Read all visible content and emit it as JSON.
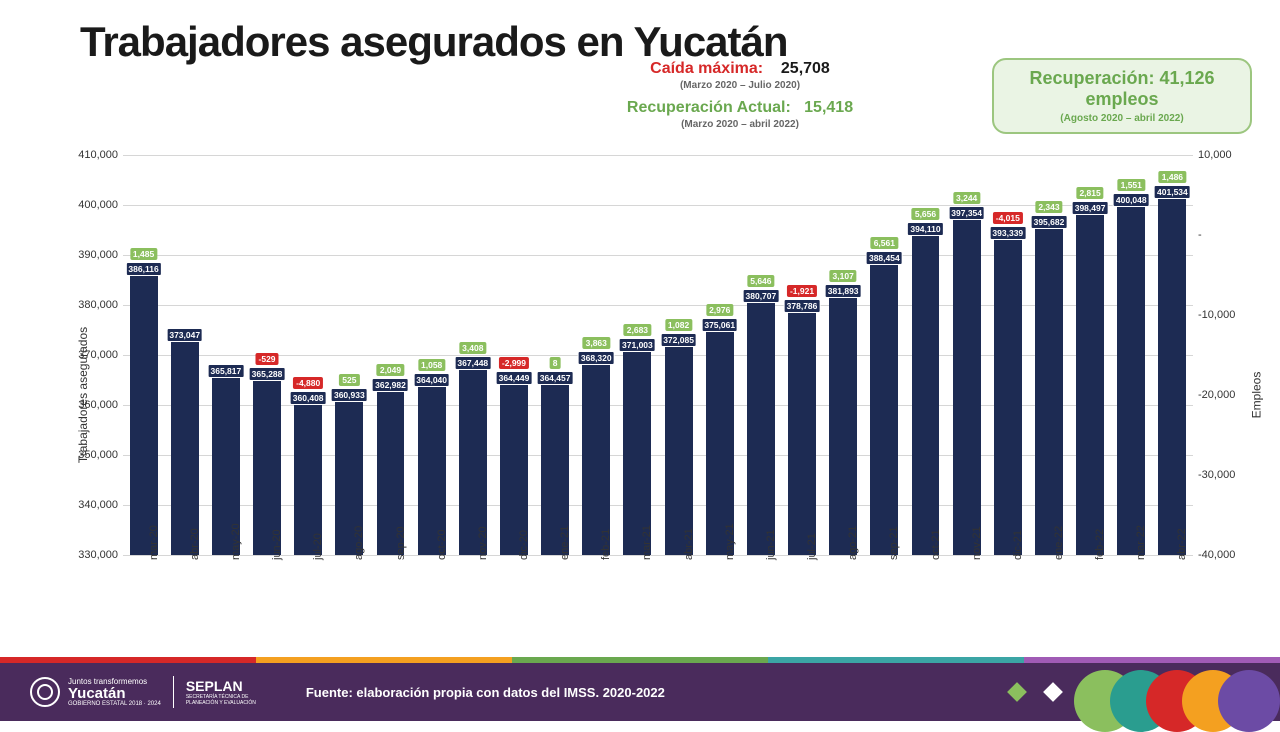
{
  "title": "Trabajadores asegurados en Yucatán",
  "subheader": {
    "caida_label": "Caída máxima:",
    "caida_value": "25,708",
    "caida_period": "(Marzo 2020 – Julio 2020)",
    "recup_label": "Recuperación Actual:",
    "recup_value": "15,418",
    "recup_period": "(Marzo 2020 – abril 2022)"
  },
  "recovery_box": {
    "line1": "Recuperación: 41,126 empleos",
    "line2": "(Agosto 2020 – abril 2022)"
  },
  "chart": {
    "type": "bar",
    "bar_color": "#1d2b53",
    "delta_pos_color": "#8bbf5e",
    "delta_neg_color": "#d62828",
    "grid_color": "#d6d6d6",
    "background_color": "#ffffff",
    "y_left": {
      "label": "Trabajadores asegurados",
      "min": 330000,
      "max": 410000,
      "step": 10000
    },
    "y_right": {
      "label": "Empleos",
      "min": -40000,
      "max": 10000,
      "step": 10000
    },
    "categories": [
      "mar-20",
      "abr-20",
      "may-20",
      "jun-20",
      "jul-20",
      "ago-20",
      "sep-20",
      "oct-20",
      "nov-20",
      "dic-20",
      "ene-21",
      "feb-21",
      "mar-21",
      "abr-21",
      "may-21",
      "jun-21",
      "jul-21",
      "ago-21",
      "sep-21",
      "oct-21",
      "nov-21",
      "dic-21",
      "ene-22",
      "feb-22",
      "mar-22",
      "abr-22"
    ],
    "values": [
      386116,
      373047,
      365817,
      365288,
      360408,
      360933,
      362982,
      364040,
      367448,
      364449,
      364457,
      368320,
      371003,
      372085,
      375061,
      380707,
      378786,
      381893,
      388454,
      394110,
      397354,
      393339,
      395682,
      398497,
      400048,
      401534
    ],
    "value_labels": [
      "386,116",
      "373,047",
      "365,817",
      "365,288",
      "360,408",
      "360,933",
      "362,982",
      "364,040",
      "367,448",
      "364,449",
      "364,457",
      "368,320",
      "371,003",
      "372,085",
      "375,061",
      "380,707",
      "378,786",
      "381,893",
      "388,454",
      "394,110",
      "397,354",
      "393,339",
      "395,682",
      "398,497",
      "400,048",
      "401,534"
    ],
    "deltas": [
      1485,
      null,
      null,
      -529,
      -4880,
      525,
      2049,
      1058,
      3408,
      -2999,
      8,
      3863,
      2683,
      1082,
      2976,
      5646,
      -1921,
      3107,
      6561,
      5656,
      3244,
      -4015,
      2343,
      2815,
      1551,
      1486
    ],
    "delta_labels": [
      "1,485",
      null,
      null,
      "-529",
      "-4,880",
      "525",
      "2,049",
      "1,058",
      "3,408",
      "-2,999",
      "8",
      "3,863",
      "2,683",
      "1,082",
      "2,976",
      "5,646",
      "-1,921",
      "3,107",
      "6,561",
      "5,656",
      "3,244",
      "-4,015",
      "2,343",
      "2,815",
      "1,551",
      "1,486"
    ]
  },
  "footer": {
    "logo1_top": "Juntos transformemos",
    "logo1_main": "Yucatán",
    "logo1_sub": "GOBIERNO ESTATAL 2018 · 2024",
    "logo2": "SEPLAN",
    "logo2_sub": "SECRETARÍA TÉCNICA DE PLANEACIÓN Y EVALUACIÓN",
    "source": "Fuente: elaboración propia con datos del IMSS. 2020-2022",
    "accent_colors": [
      "#d62828",
      "#f4a020",
      "#6aa84f",
      "#3ba5a5",
      "#a05bb5"
    ],
    "shape_colors": [
      "#8bbf5e",
      "#2a9d8f",
      "#d62828",
      "#f4a020",
      "#6c4ba5"
    ]
  }
}
